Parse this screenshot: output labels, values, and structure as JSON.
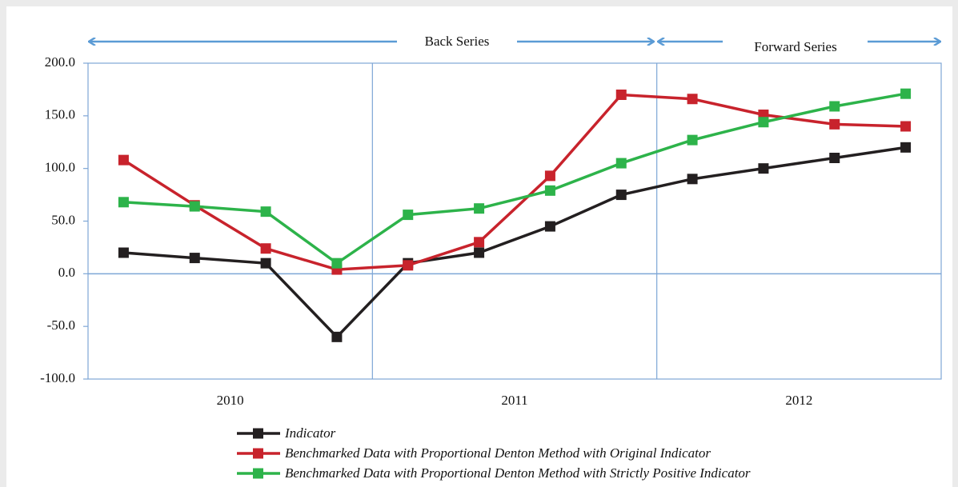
{
  "chart_data": {
    "type": "line",
    "categories": [
      null,
      null,
      null,
      null,
      null,
      null,
      null,
      null,
      null,
      null,
      null,
      null
    ],
    "x_groups": [
      "2010",
      "2011",
      "2012"
    ],
    "annotations": [
      "Back Series",
      "Forward Series"
    ],
    "series": [
      {
        "name": "Indicator",
        "color": "#231f20",
        "values": [
          20,
          15,
          10,
          -60,
          10,
          20,
          45,
          75,
          90,
          100,
          110,
          120
        ]
      },
      {
        "name": "Benchmarked Data with Proportional Denton Method with Original Indicator",
        "color": "#c8232c",
        "values": [
          108,
          65,
          24,
          4,
          8,
          30,
          93,
          170,
          166,
          151,
          142,
          140
        ]
      },
      {
        "name": "Benchmarked Data with Proportional Denton Method with Strictly Positive Indicator",
        "color": "#2db34a",
        "values": [
          68,
          64,
          59,
          10,
          56,
          62,
          79,
          105,
          127,
          144,
          159,
          171
        ]
      }
    ],
    "ylim": [
      -100,
      200
    ],
    "yticks": [
      {
        "value": -100,
        "label": "-100.0"
      },
      {
        "value": -50,
        "label": "-50.0"
      },
      {
        "value": 0,
        "label": "0.0"
      },
      {
        "value": 50,
        "label": "50.0"
      },
      {
        "value": 100,
        "label": "100.0"
      },
      {
        "value": 150,
        "label": "150.0"
      },
      {
        "value": 200,
        "label": "200.0"
      }
    ],
    "legend": "bottom"
  }
}
